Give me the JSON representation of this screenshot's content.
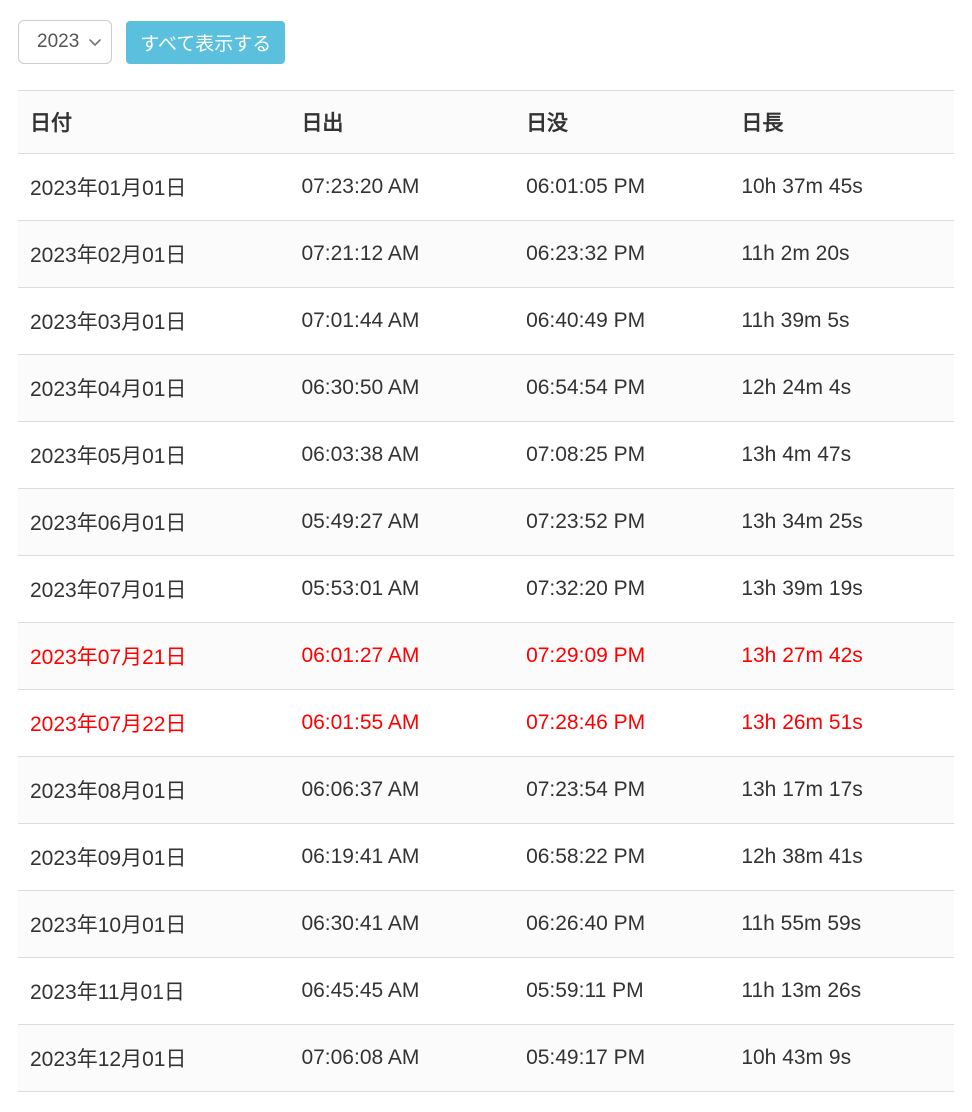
{
  "controls": {
    "year_selected": "2023",
    "show_all_label": "すべて表示する"
  },
  "table": {
    "columns": [
      "日付",
      "日出",
      "日没",
      "日長"
    ],
    "rows": [
      {
        "date": "2023年01月01日",
        "sunrise": "07:23:20 AM",
        "sunset": "06:01:05 PM",
        "daylength": "10h 37m 45s",
        "highlight": false
      },
      {
        "date": "2023年02月01日",
        "sunrise": "07:21:12 AM",
        "sunset": "06:23:32 PM",
        "daylength": "11h 2m 20s",
        "highlight": false
      },
      {
        "date": "2023年03月01日",
        "sunrise": "07:01:44 AM",
        "sunset": "06:40:49 PM",
        "daylength": "11h 39m 5s",
        "highlight": false
      },
      {
        "date": "2023年04月01日",
        "sunrise": "06:30:50 AM",
        "sunset": "06:54:54 PM",
        "daylength": "12h 24m 4s",
        "highlight": false
      },
      {
        "date": "2023年05月01日",
        "sunrise": "06:03:38 AM",
        "sunset": "07:08:25 PM",
        "daylength": "13h 4m 47s",
        "highlight": false
      },
      {
        "date": "2023年06月01日",
        "sunrise": "05:49:27 AM",
        "sunset": "07:23:52 PM",
        "daylength": "13h 34m 25s",
        "highlight": false
      },
      {
        "date": "2023年07月01日",
        "sunrise": "05:53:01 AM",
        "sunset": "07:32:20 PM",
        "daylength": "13h 39m 19s",
        "highlight": false
      },
      {
        "date": "2023年07月21日",
        "sunrise": "06:01:27 AM",
        "sunset": "07:29:09 PM",
        "daylength": "13h 27m 42s",
        "highlight": true
      },
      {
        "date": "2023年07月22日",
        "sunrise": "06:01:55 AM",
        "sunset": "07:28:46 PM",
        "daylength": "13h 26m 51s",
        "highlight": true
      },
      {
        "date": "2023年08月01日",
        "sunrise": "06:06:37 AM",
        "sunset": "07:23:54 PM",
        "daylength": "13h 17m 17s",
        "highlight": false
      },
      {
        "date": "2023年09月01日",
        "sunrise": "06:19:41 AM",
        "sunset": "06:58:22 PM",
        "daylength": "12h 38m 41s",
        "highlight": false
      },
      {
        "date": "2023年10月01日",
        "sunrise": "06:30:41 AM",
        "sunset": "06:26:40 PM",
        "daylength": "11h 55m 59s",
        "highlight": false
      },
      {
        "date": "2023年11月01日",
        "sunrise": "06:45:45 AM",
        "sunset": "05:59:11 PM",
        "daylength": "11h 13m 26s",
        "highlight": false
      },
      {
        "date": "2023年12月01日",
        "sunrise": "07:06:08 AM",
        "sunset": "05:49:17 PM",
        "daylength": "10h 43m 9s",
        "highlight": false
      }
    ],
    "styling": {
      "type": "table",
      "header_bg": "#fbfbfb",
      "row_alt_bg": "#fbfbfb",
      "border_color": "#dddddd",
      "text_color": "#333333",
      "highlight_color": "#ff0000",
      "font_size_pt": 16,
      "header_font_weight": 700
    }
  },
  "colors": {
    "button_bg": "#5bc0de",
    "button_text": "#ffffff",
    "select_border": "#cccccc",
    "select_text": "#555555"
  }
}
